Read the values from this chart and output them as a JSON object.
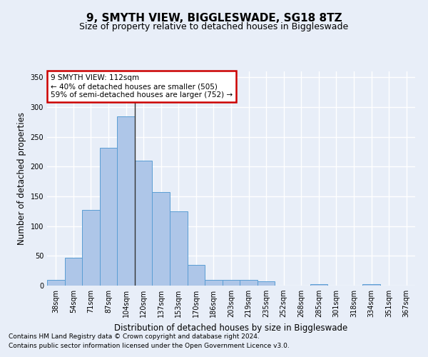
{
  "title": "9, SMYTH VIEW, BIGGLESWADE, SG18 8TZ",
  "subtitle": "Size of property relative to detached houses in Biggleswade",
  "xlabel": "Distribution of detached houses by size in Biggleswade",
  "ylabel": "Number of detached properties",
  "categories": [
    "38sqm",
    "54sqm",
    "71sqm",
    "87sqm",
    "104sqm",
    "120sqm",
    "137sqm",
    "153sqm",
    "170sqm",
    "186sqm",
    "203sqm",
    "219sqm",
    "235sqm",
    "252sqm",
    "268sqm",
    "285sqm",
    "301sqm",
    "318sqm",
    "334sqm",
    "351sqm",
    "367sqm"
  ],
  "values": [
    10,
    47,
    127,
    232,
    284,
    210,
    157,
    125,
    35,
    10,
    10,
    10,
    7,
    0,
    0,
    3,
    0,
    0,
    3,
    0,
    0
  ],
  "bar_color": "#aec6e8",
  "bar_edge_color": "#5a9ed4",
  "background_color": "#e8eef8",
  "grid_color": "#ffffff",
  "ylim": [
    0,
    360
  ],
  "yticks": [
    0,
    50,
    100,
    150,
    200,
    250,
    300,
    350
  ],
  "annotation_text": "9 SMYTH VIEW: 112sqm\n← 40% of detached houses are smaller (505)\n59% of semi-detached houses are larger (752) →",
  "annotation_box_color": "#ffffff",
  "annotation_box_edge": "#cc0000",
  "vline_x_index": 4.5,
  "vline_color": "#333333",
  "footer1": "Contains HM Land Registry data © Crown copyright and database right 2024.",
  "footer2": "Contains public sector information licensed under the Open Government Licence v3.0.",
  "title_fontsize": 11,
  "subtitle_fontsize": 9,
  "xlabel_fontsize": 8.5,
  "ylabel_fontsize": 8.5,
  "tick_fontsize": 7,
  "footer_fontsize": 6.5,
  "annotation_fontsize": 7.5
}
